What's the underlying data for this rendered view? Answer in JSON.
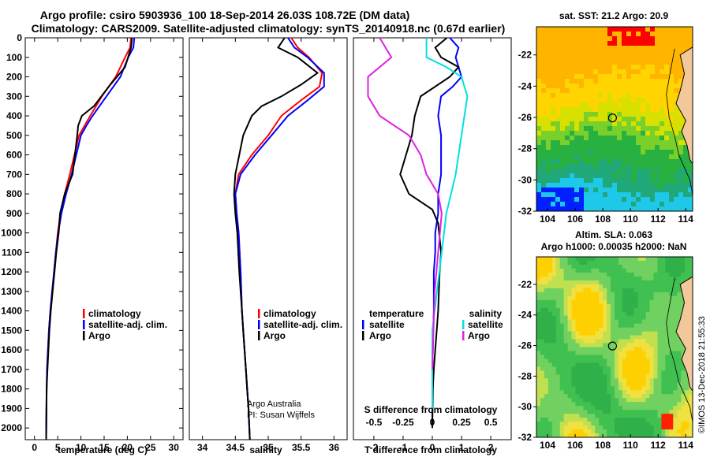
{
  "title_line1": "Argo profile: csiro 5903936_100 18-Sep-2014 26.03S 108.72E (DM data)",
  "title_line2": "Climatology: CARS2009. Satellite-adjusted climatology: synTS_20140918.nc (0.67d earlier)",
  "colors": {
    "climatology": "#ff0000",
    "satellite": "#0000ff",
    "argo": "#000000",
    "sat_t": "#0000ff",
    "sat_s": "#00e0e0",
    "argo_s": "#e020e0"
  },
  "chart_data": [
    {
      "type": "line",
      "name": "temperature-profile",
      "xlabel": "temperature (deg C)",
      "xticks": [
        0,
        5,
        10,
        15,
        20,
        25,
        30
      ],
      "xlim": [
        -2,
        32
      ],
      "ylim": [
        2060,
        0
      ],
      "yticks": [
        0,
        100,
        200,
        300,
        400,
        500,
        600,
        700,
        800,
        900,
        1000,
        1100,
        1200,
        1300,
        1400,
        1500,
        1600,
        1700,
        1800,
        1900,
        2000
      ],
      "legend": [
        "climatology",
        "satellite-adj. clim.",
        "Argo"
      ],
      "series": [
        {
          "name": "climatology",
          "color": "#ff0000",
          "x": [
            20.8,
            20.6,
            19.5,
            17.5,
            14.5,
            12,
            10.8,
            9.6,
            8.6,
            7.6,
            6.5,
            5.6,
            5.0,
            4.6,
            4.2,
            3.8,
            3.4,
            3.1,
            2.9,
            2.7,
            2.6,
            2.5
          ],
          "depth": [
            0,
            50,
            100,
            200,
            300,
            400,
            450,
            500,
            600,
            700,
            800,
            900,
            1000,
            1100,
            1200,
            1300,
            1400,
            1500,
            1600,
            1700,
            1800,
            2060
          ]
        },
        {
          "name": "satellite-adj. clim.",
          "color": "#0000ff",
          "x": [
            21.5,
            21.3,
            20.2,
            18.5,
            15.5,
            12.5,
            11.2,
            10,
            9,
            8,
            6.8,
            5.8,
            5.1,
            4.6,
            4.2,
            3.8,
            3.4,
            3.1,
            2.9,
            2.7,
            2.6,
            2.5
          ],
          "depth": [
            0,
            50,
            100,
            200,
            300,
            400,
            450,
            500,
            600,
            700,
            800,
            900,
            1000,
            1100,
            1200,
            1300,
            1400,
            1500,
            1600,
            1700,
            1800,
            2060
          ]
        },
        {
          "name": "Argo",
          "color": "#000000",
          "x": [
            21,
            20.8,
            19.5,
            16,
            12.8,
            10.2,
            9.4,
            9.2,
            8.2,
            6.5,
            5.5,
            5.2,
            4.7,
            4.3,
            3.9,
            3.5,
            3.2,
            3.0,
            2.8,
            2.6,
            2.5
          ],
          "depth": [
            0,
            50,
            150,
            250,
            350,
            400,
            450,
            500,
            700,
            800,
            900,
            1000,
            1100,
            1200,
            1300,
            1400,
            1500,
            1600,
            1700,
            1800,
            2060
          ]
        }
      ]
    },
    {
      "type": "line",
      "name": "salinity-profile",
      "xlabel": "salinity",
      "xticks": [
        34,
        34.5,
        35,
        35.5,
        36
      ],
      "xlim": [
        33.8,
        36.2
      ],
      "ylim": [
        2060,
        0
      ],
      "legend": [
        "climatology",
        "satellite-adj. clim.",
        "Argo"
      ],
      "annotation": [
        "Argo Australia",
        "PI: Susan Wijffels"
      ],
      "series": [
        {
          "name": "climatology",
          "color": "#ff0000",
          "x": [
            35.35,
            35.45,
            35.62,
            35.82,
            35.78,
            35.5,
            35.2,
            35.0,
            34.75,
            34.55,
            34.5,
            34.52,
            34.55,
            34.58,
            34.6,
            34.62,
            34.64,
            34.66,
            34.68,
            34.7,
            34.72
          ],
          "depth": [
            0,
            50,
            100,
            180,
            250,
            320,
            400,
            500,
            600,
            700,
            800,
            900,
            1000,
            1200,
            1400,
            1500,
            1600,
            1700,
            1800,
            1900,
            2060
          ]
        },
        {
          "name": "satellite-adj. clim.",
          "color": "#0000ff",
          "x": [
            35.3,
            35.4,
            35.6,
            35.85,
            35.85,
            35.6,
            35.3,
            35.05,
            34.8,
            34.58,
            34.5,
            34.52,
            34.55,
            34.58,
            34.6,
            34.62,
            34.64,
            34.66,
            34.68,
            34.7,
            34.72
          ],
          "depth": [
            0,
            50,
            100,
            180,
            250,
            320,
            400,
            500,
            600,
            700,
            800,
            900,
            1000,
            1200,
            1400,
            1500,
            1600,
            1700,
            1800,
            1900,
            2060
          ]
        },
        {
          "name": "Argo",
          "color": "#000000",
          "x": [
            35.25,
            35.15,
            35.45,
            35.75,
            35.5,
            35.2,
            34.9,
            34.75,
            34.62,
            34.5,
            34.48,
            34.5,
            34.53,
            34.56,
            34.6,
            34.62,
            34.64,
            34.66,
            34.68,
            34.7,
            34.72
          ],
          "depth": [
            0,
            50,
            100,
            180,
            240,
            300,
            350,
            400,
            500,
            700,
            800,
            900,
            1000,
            1200,
            1400,
            1500,
            1600,
            1700,
            1800,
            1900,
            2060
          ]
        }
      ]
    },
    {
      "type": "line",
      "name": "difference-profile",
      "xlabel": "T difference from climatology",
      "xlabel_top": "S difference from climatology",
      "xticks": [
        -2,
        -1,
        0,
        1,
        2
      ],
      "s_ticks": [
        "-0.5",
        "-0.25",
        "0",
        "0.25",
        "0.5"
      ],
      "xlim": [
        -2.7,
        2.7
      ],
      "ylim": [
        2060,
        0
      ],
      "legend_left": [
        "temperature",
        "satellite",
        "Argo"
      ],
      "legend_right": [
        "salinity",
        "satellite",
        "Argo"
      ],
      "series": [
        {
          "name": "temperature satellite",
          "color": "#0000ff",
          "x": [
            0.6,
            0.9,
            0.8,
            1.0,
            0.7,
            0.3,
            0.2,
            0.3,
            0.3,
            0.3,
            0.2,
            0.2,
            0.1,
            0.1,
            0.05,
            0.05,
            0.03,
            0.02,
            0.0,
            0.0,
            0.0
          ],
          "depth": [
            0,
            50,
            100,
            200,
            250,
            300,
            400,
            500,
            600,
            700,
            800,
            900,
            1000,
            1100,
            1200,
            1400,
            1500,
            1600,
            1700,
            1800,
            2000
          ]
        },
        {
          "name": "temperature Argo",
          "color": "#000000",
          "x": [
            0.5,
            0.1,
            0.3,
            0.9,
            0.6,
            -0.4,
            -0.6,
            -0.7,
            -0.9,
            -1.1,
            -0.8,
            0,
            0.2,
            0.3,
            0.25,
            0.2,
            0.15,
            0.1,
            0.05,
            0.02,
            0.0
          ],
          "depth": [
            0,
            50,
            100,
            150,
            200,
            300,
            400,
            500,
            600,
            700,
            800,
            880,
            950,
            1100,
            1200,
            1400,
            1500,
            1600,
            1700,
            1800,
            2000
          ]
        },
        {
          "name": "salinity satellite",
          "color": "#00e0e0",
          "x": [
            -0.05,
            -0.05,
            0.12,
            0.25,
            0.3,
            0.25,
            0.2,
            0.12,
            0.08,
            0.04,
            0.0,
            0.0,
            0.0
          ],
          "depth": [
            0,
            100,
            150,
            200,
            300,
            500,
            700,
            900,
            1100,
            1300,
            1500,
            1700,
            1900
          ]
        },
        {
          "name": "salinity Argo",
          "color": "#e020e0",
          "x": [
            -0.45,
            -0.35,
            -0.55,
            -0.55,
            -0.45,
            -0.2,
            -0.1,
            -0.05,
            0.05,
            0.08,
            0.05,
            0.02,
            0.01,
            0.0
          ],
          "depth": [
            0,
            100,
            200,
            300,
            400,
            500,
            600,
            700,
            800,
            900,
            1100,
            1300,
            1500,
            1700
          ]
        }
      ]
    },
    {
      "type": "heatmap",
      "name": "sst-map",
      "title": "sat. SST: 21.2 Argo: 20.9",
      "xticks": [
        104,
        106,
        108,
        110,
        112,
        114
      ],
      "yticks": [
        -22,
        -24,
        -26,
        -28,
        -30,
        -32
      ],
      "xlim": [
        103.2,
        114.5
      ],
      "ylim": [
        -32,
        -20.2
      ],
      "marker": [
        108.7,
        -26.03
      ]
    },
    {
      "type": "heatmap",
      "name": "altimetry-map",
      "title_line1": "Altim. SLA: 0.063",
      "title_line2": "Argo h1000: 0.00035 h2000: NaN",
      "xticks": [
        104,
        106,
        108,
        110,
        112,
        114
      ],
      "yticks": [
        -22,
        -24,
        -26,
        -28,
        -30,
        -32
      ],
      "xlim": [
        103.2,
        114.5
      ],
      "ylim": [
        -32,
        -20.2
      ],
      "marker": [
        108.7,
        -26.03
      ]
    }
  ],
  "credit": "©IMOS 13-Dec-2018 21:55:33"
}
